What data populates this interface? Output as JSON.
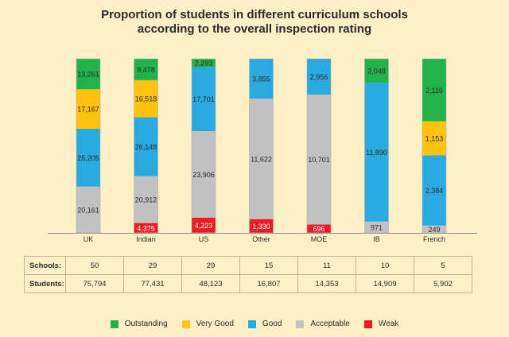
{
  "title_line1": "Proportion of students in different curriculum schools",
  "title_line2": "according to the overall  inspection rating",
  "colors": {
    "Outstanding": "#21b24b",
    "Very Good": "#ffc20e",
    "Good": "#29abe2",
    "Acceptable": "#c1c1c1",
    "Weak": "#ed1c24"
  },
  "chart_data": {
    "type": "bar",
    "stacked": true,
    "normalized": true,
    "categories": [
      "UK",
      "Indian",
      "US",
      "Other",
      "MOE",
      "IB",
      "French"
    ],
    "series": [
      {
        "name": "Weak",
        "values": [
          0,
          4375,
          4223,
          1330,
          696,
          0,
          0
        ],
        "labels": [
          "",
          "4,375",
          "4,223",
          "1,330",
          "696",
          "",
          ""
        ]
      },
      {
        "name": "Acceptable",
        "values": [
          20161,
          20912,
          23906,
          11622,
          10701,
          971,
          249
        ],
        "labels": [
          "20,161",
          "20,912",
          "23,906",
          "11,622",
          "10,701",
          "971",
          "249"
        ]
      },
      {
        "name": "Good",
        "values": [
          25205,
          26148,
          17701,
          3855,
          2956,
          11890,
          2384
        ],
        "labels": [
          "25,205",
          "26,148",
          "17,701",
          "3,855",
          "2,956",
          "11,890",
          "2,384"
        ]
      },
      {
        "name": "Very Good",
        "values": [
          17167,
          16518,
          0,
          0,
          0,
          0,
          1153
        ],
        "labels": [
          "17,167",
          "16,518",
          "",
          "",
          "",
          "",
          "1,153"
        ]
      },
      {
        "name": "Outstanding",
        "values": [
          13261,
          9478,
          2293,
          0,
          0,
          2048,
          2116
        ],
        "labels": [
          "13,261",
          "9,478",
          "2,293",
          "",
          "",
          "2,048",
          "2,116"
        ]
      }
    ],
    "legend_order": [
      "Outstanding",
      "Very Good",
      "Good",
      "Acceptable",
      "Weak"
    ],
    "legend_position": "bottom"
  },
  "table": {
    "rows": [
      {
        "label": "Schools:",
        "values": [
          "50",
          "29",
          "29",
          "15",
          "11",
          "10",
          "5"
        ]
      },
      {
        "label": "Students:",
        "values": [
          "75,794",
          "77,431",
          "48,123",
          "16,807",
          "14,353",
          "14,909",
          "5,902"
        ]
      }
    ]
  }
}
